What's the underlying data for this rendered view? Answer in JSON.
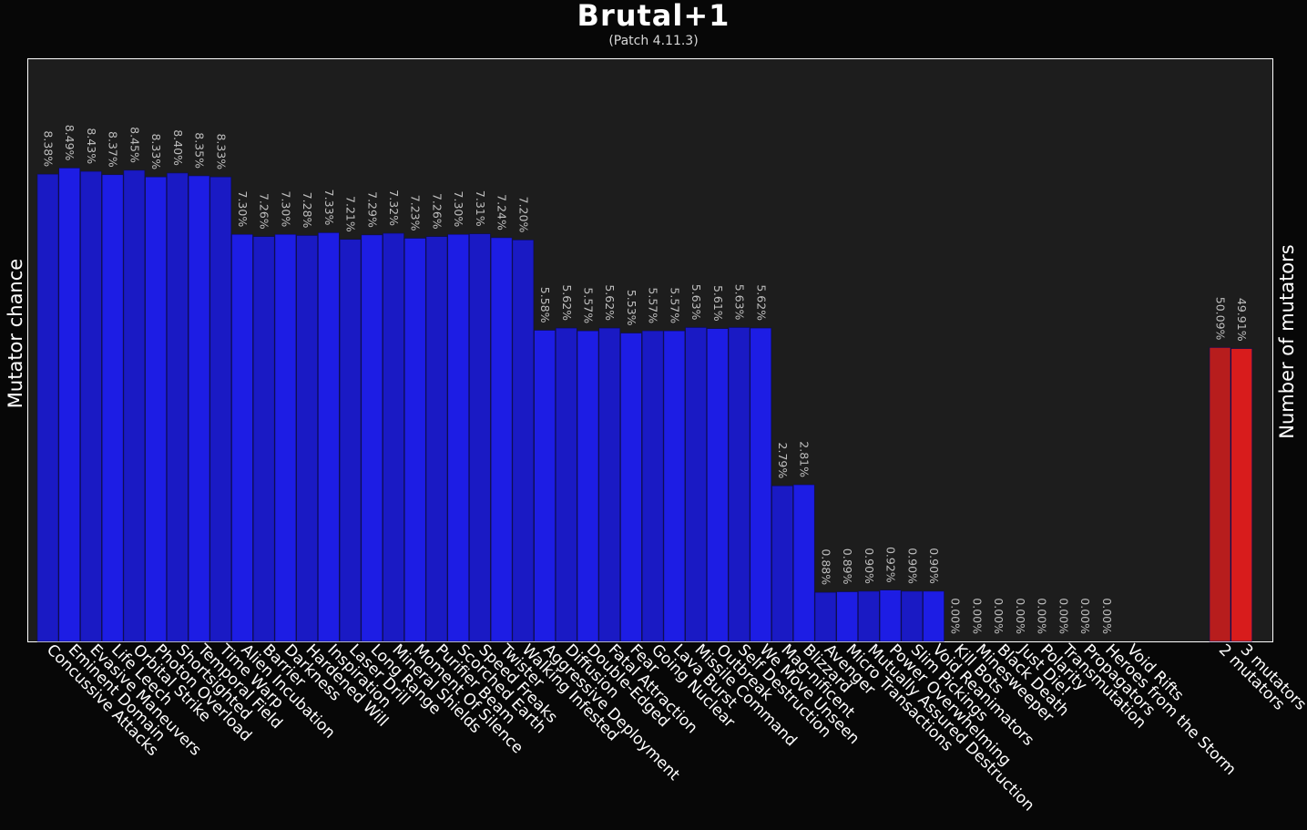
{
  "chart_data": {
    "type": "bar",
    "title": "Brutal+1",
    "subtitle": "(Patch 4.11.3)",
    "ylabel": "Mutator chance",
    "ylabel_right": "Number of mutators",
    "ylim": [
      0,
      10
    ],
    "ylim_right": [
      0,
      100
    ],
    "grid": false,
    "mutators": {
      "categories": [
        "Concussive Attacks",
        "Eminent Domain",
        "Evasive Maneuvers",
        "Life Leech",
        "Orbital Strike",
        "Photon Overload",
        "Shortsighted",
        "Temporal Field",
        "Time Warp",
        "Alien Incubation",
        "Barrier",
        "Darkness",
        "Hardened Will",
        "Inspiration",
        "Laser Drill",
        "Long Range",
        "Mineral Shields",
        "Moment Of Silence",
        "Purifier Beam",
        "Scorched Earth",
        "Speed Freaks",
        "Twister",
        "Walking Infested",
        "Aggressive Deployment",
        "Diffusion",
        "Double-Edged",
        "Fatal Attraction",
        "Fear",
        "Going Nuclear",
        "Lava Burst",
        "Missile Command",
        "Outbreak",
        "Self Destruction",
        "We Move Unseen",
        "Mag-nificent",
        "Blizzard",
        "Avenger",
        "Micro Transactions",
        "Mutually Assured Destruction",
        "Power Overwhelming",
        "Slim Pickings",
        "Void Reanimators",
        "Kill Bots",
        "Minesweeper",
        "Black Death",
        "Just Die!",
        "Polarity",
        "Transmutation",
        "Propagators",
        "Heroes from the Storm",
        "Void Rifts"
      ],
      "values": [
        8.38,
        8.49,
        8.43,
        8.37,
        8.45,
        8.33,
        8.4,
        8.35,
        8.33,
        7.3,
        7.26,
        7.3,
        7.28,
        7.33,
        7.21,
        7.29,
        7.32,
        7.23,
        7.26,
        7.3,
        7.31,
        7.24,
        7.2,
        5.58,
        5.62,
        5.57,
        5.62,
        5.53,
        5.57,
        5.57,
        5.63,
        5.61,
        5.63,
        5.62,
        2.79,
        2.81,
        0.88,
        0.89,
        0.9,
        0.92,
        0.9,
        0.9,
        0.0,
        0.0,
        0.0,
        0.0,
        0.0,
        0.0,
        0.0,
        0.0,
        0.0
      ],
      "labels": [
        "8.38%",
        "8.49%",
        "8.43%",
        "8.37%",
        "8.45%",
        "8.33%",
        "8.40%",
        "8.35%",
        "8.33%",
        "7.30%",
        "7.26%",
        "7.30%",
        "7.28%",
        "7.33%",
        "7.21%",
        "7.29%",
        "7.32%",
        "7.23%",
        "7.26%",
        "7.30%",
        "7.31%",
        "7.24%",
        "7.20%",
        "5.58%",
        "5.62%",
        "5.57%",
        "5.62%",
        "5.53%",
        "5.57%",
        "5.57%",
        "5.63%",
        "5.61%",
        "5.63%",
        "5.62%",
        "2.79%",
        "2.81%",
        "0.88%",
        "0.89%",
        "0.90%",
        "0.92%",
        "0.90%",
        "0.90%",
        "0.00%",
        "0.00%",
        "0.00%",
        "0.00%",
        "0.00%",
        "0.00%",
        "0.00%",
        "0.00%",
        ""
      ],
      "color_dark": "#1a1ac4",
      "color_light": "#1d1de4"
    },
    "counts": {
      "categories": [
        "2 mutators",
        "3 mutators"
      ],
      "values": [
        50.09,
        49.91
      ],
      "labels": [
        "50.09%",
        "49.91%"
      ],
      "colors": [
        "#b71d1d",
        "#d81c1c"
      ]
    },
    "colors": {
      "page_background": "#070707",
      "plot_background": "#1d1d1d",
      "plot_border": "#ffffff",
      "value_label": "#bdbdbd"
    }
  }
}
